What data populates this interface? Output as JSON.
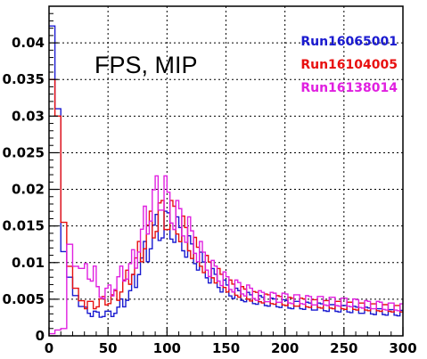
{
  "chart_data": {
    "type": "line",
    "title": "FPS, MIP",
    "xlim": [
      0,
      300
    ],
    "ylim": [
      0,
      0.045
    ],
    "grid": true,
    "legend_position": "top-right",
    "x_ticks": [
      0,
      50,
      100,
      150,
      200,
      250,
      300
    ],
    "y_ticks": [
      0,
      0.005,
      0.01,
      0.015,
      0.02,
      0.025,
      0.03,
      0.035,
      0.04
    ],
    "x_tick_labels": [
      "0",
      "50",
      "100",
      "150",
      "200",
      "250",
      "300"
    ],
    "y_tick_labels": [
      "0",
      "0.005",
      "0.01",
      "0.015",
      "0.02",
      "0.025",
      "0.03",
      "0.035",
      "0.04"
    ],
    "x": [
      0,
      5,
      10,
      15,
      20,
      25,
      30,
      35,
      40,
      45,
      50,
      55,
      60,
      65,
      70,
      75,
      80,
      85,
      90,
      95,
      100,
      105,
      110,
      115,
      120,
      125,
      130,
      135,
      140,
      145,
      150,
      155,
      160,
      165,
      170,
      175,
      180,
      185,
      190,
      195,
      200,
      205,
      210,
      215,
      220,
      225,
      230,
      235,
      240,
      245,
      250,
      255,
      260,
      265,
      270,
      275,
      280,
      285,
      290,
      295
    ],
    "series": [
      {
        "name": "Run16065001",
        "color": "#1a1ad0",
        "values": [
          0.0423,
          0.031,
          0.0115,
          0.008,
          0.0055,
          0.004,
          0.0035,
          0.003,
          0.0029,
          0.003,
          0.003,
          0.0035,
          0.0045,
          0.0055,
          0.0075,
          0.0095,
          0.0115,
          0.0135,
          0.0148,
          0.0152,
          0.015,
          0.0145,
          0.0132,
          0.0122,
          0.0112,
          0.0102,
          0.009,
          0.0082,
          0.0075,
          0.0068,
          0.0062,
          0.0058,
          0.0055,
          0.0053,
          0.005,
          0.0049,
          0.0047,
          0.0046,
          0.0045,
          0.0044,
          0.0043,
          0.0042,
          0.0042,
          0.0041,
          0.004,
          0.004,
          0.0039,
          0.0038,
          0.0038,
          0.0037,
          0.0037,
          0.0036,
          0.0035,
          0.0035,
          0.0034,
          0.0033,
          0.0033,
          0.0032,
          0.0032,
          0.0031
        ]
      },
      {
        "name": "Run16104005",
        "color": "#e81010",
        "values": [
          0.035,
          0.03,
          0.0155,
          0.0095,
          0.0065,
          0.0048,
          0.0042,
          0.0042,
          0.0045,
          0.0048,
          0.005,
          0.0055,
          0.0068,
          0.008,
          0.0095,
          0.0115,
          0.0135,
          0.0152,
          0.0162,
          0.0165,
          0.0165,
          0.0158,
          0.0146,
          0.0132,
          0.012,
          0.0108,
          0.0098,
          0.009,
          0.0082,
          0.0075,
          0.0068,
          0.0063,
          0.006,
          0.0057,
          0.0054,
          0.0053,
          0.0051,
          0.005,
          0.0049,
          0.0048,
          0.0047,
          0.0046,
          0.0046,
          0.0045,
          0.0044,
          0.0044,
          0.0043,
          0.0043,
          0.0042,
          0.0042,
          0.0041,
          0.0041,
          0.004,
          0.004,
          0.0039,
          0.0039,
          0.0038,
          0.0038,
          0.0037,
          0.0037
        ]
      },
      {
        "name": "Run16138014",
        "color": "#e020e0",
        "values": [
          0.0003,
          0.0008,
          0.001,
          0.0125,
          0.0095,
          0.0092,
          0.0088,
          0.0085,
          0.006,
          0.0058,
          0.0062,
          0.0072,
          0.0085,
          0.0088,
          0.0105,
          0.013,
          0.0158,
          0.0178,
          0.0195,
          0.0195,
          0.0175,
          0.0165,
          0.0155,
          0.0145,
          0.0128,
          0.0115,
          0.0102,
          0.0092,
          0.0085,
          0.0078,
          0.0072,
          0.0068,
          0.0065,
          0.0062,
          0.0058,
          0.0055,
          0.0053,
          0.0053,
          0.0052,
          0.0052,
          0.0051,
          0.005,
          0.005,
          0.0049,
          0.0048,
          0.0048,
          0.0048,
          0.0047,
          0.0047,
          0.0046,
          0.0046,
          0.0045,
          0.0044,
          0.0043,
          0.0042,
          0.0042,
          0.0041,
          0.004,
          0.004,
          0.0039
        ]
      }
    ]
  }
}
